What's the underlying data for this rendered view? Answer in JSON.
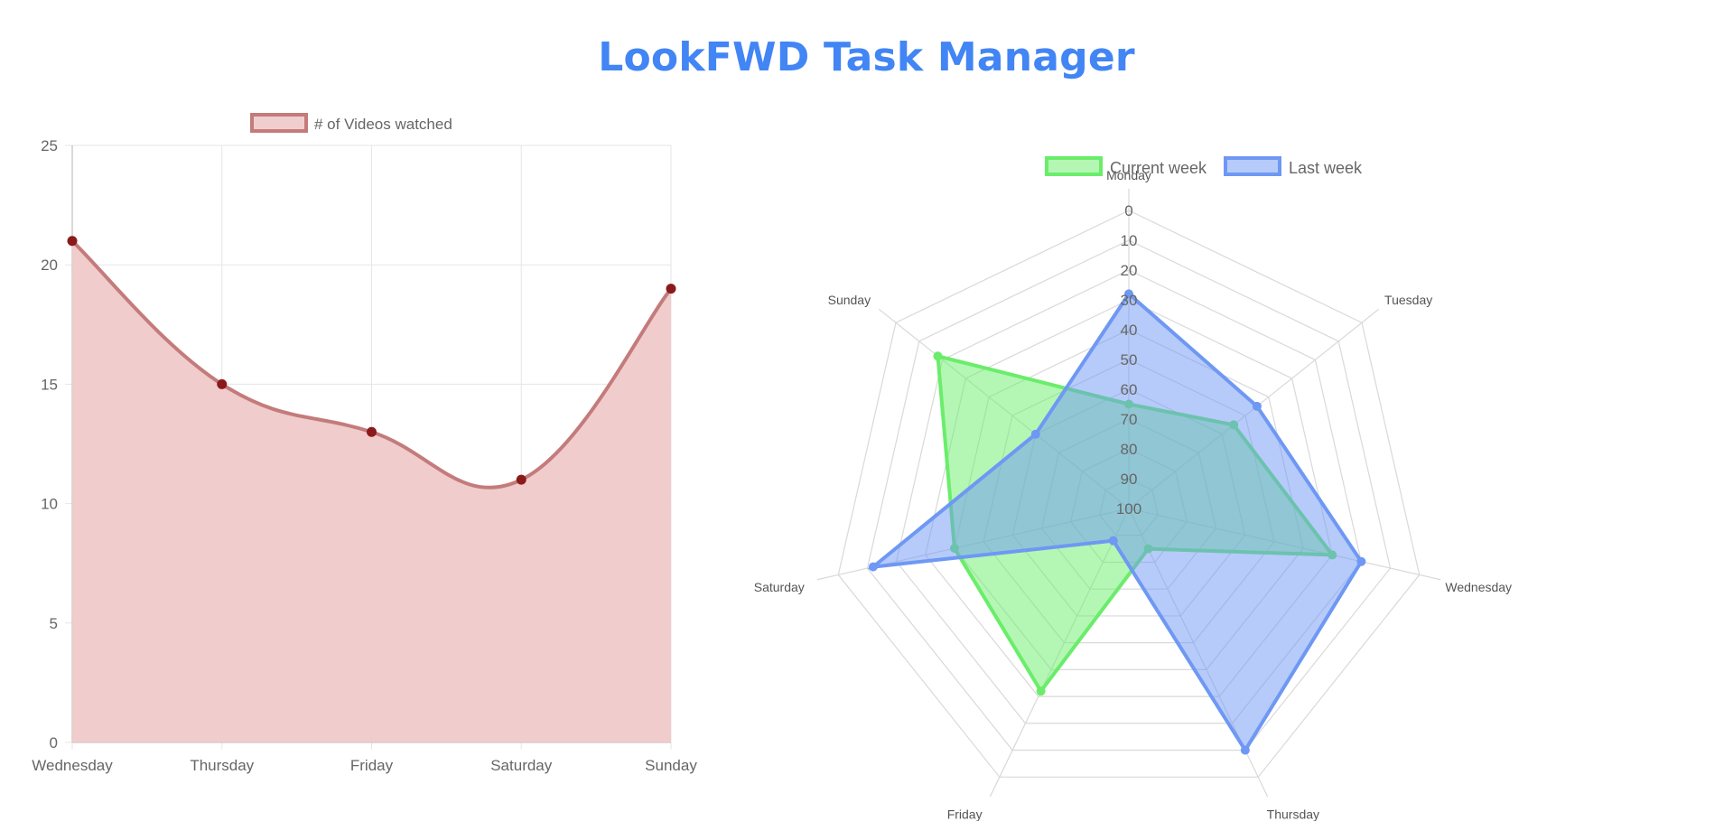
{
  "page": {
    "title": "LookFWD Task Manager"
  },
  "colors": {
    "title": "#4285f4",
    "line_stroke": "#c47b7b",
    "line_fill": "#efc9c9",
    "line_point": "#8b1a1a",
    "current_week": "#6aed6a",
    "last_week": "#6e98f3",
    "grid": "#d9d9d9",
    "text": "#666666"
  },
  "chart_data": [
    {
      "type": "area",
      "title": "",
      "xlabel": "",
      "ylabel": "",
      "categories": [
        "Wednesday",
        "Thursday",
        "Friday",
        "Saturday",
        "Sunday"
      ],
      "series": [
        {
          "name": "# of Videos watched",
          "values": [
            21,
            15,
            13,
            11,
            19
          ]
        }
      ],
      "ylim": [
        0,
        25
      ],
      "yticks": [
        "0",
        "5",
        "10",
        "15",
        "20",
        "25"
      ],
      "grid": true,
      "legend": "top"
    },
    {
      "type": "radar",
      "title": "",
      "categories": [
        "Monday",
        "Tuesday",
        "Wednesday",
        "Thursday",
        "Friday",
        "Saturday",
        "Sunday"
      ],
      "series": [
        {
          "name": "Current week",
          "values": [
            65,
            55,
            30,
            85,
            32,
            40,
            18
          ]
        },
        {
          "name": "Last week",
          "values": [
            28,
            45,
            20,
            10,
            88,
            12,
            60
          ]
        }
      ],
      "rticks": [
        "0",
        "10",
        "20",
        "30",
        "40",
        "50",
        "60",
        "70",
        "80",
        "90",
        "100"
      ],
      "rrange": [
        0,
        100
      ],
      "reverse": true,
      "grid": true,
      "legend": "top"
    }
  ]
}
